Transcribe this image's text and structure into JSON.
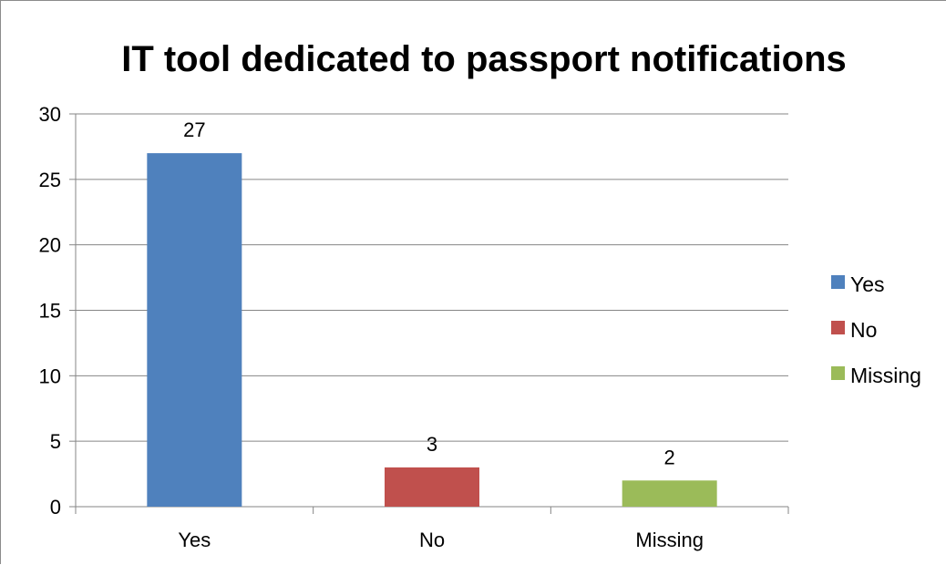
{
  "chart_data": {
    "type": "bar",
    "title": "IT tool dedicated to passport notifications",
    "categories": [
      "Yes",
      "No",
      "Missing"
    ],
    "values": [
      27,
      3,
      2
    ],
    "data_labels": [
      "27",
      "3",
      "2"
    ],
    "colors": [
      "#4f81bd",
      "#c0504d",
      "#9bbb59"
    ],
    "ylim": [
      0,
      30
    ],
    "yticks": [
      0,
      5,
      10,
      15,
      20,
      25,
      30
    ],
    "ytick_labels": [
      "0",
      "5",
      "10",
      "15",
      "20",
      "25",
      "30"
    ],
    "xlabel": "",
    "ylabel": "",
    "grid": true,
    "legend_position": "right",
    "legend": [
      {
        "label": "Yes",
        "color": "#4f81bd"
      },
      {
        "label": "No",
        "color": "#c0504d"
      },
      {
        "label": "Missing",
        "color": "#9bbb59"
      }
    ]
  }
}
